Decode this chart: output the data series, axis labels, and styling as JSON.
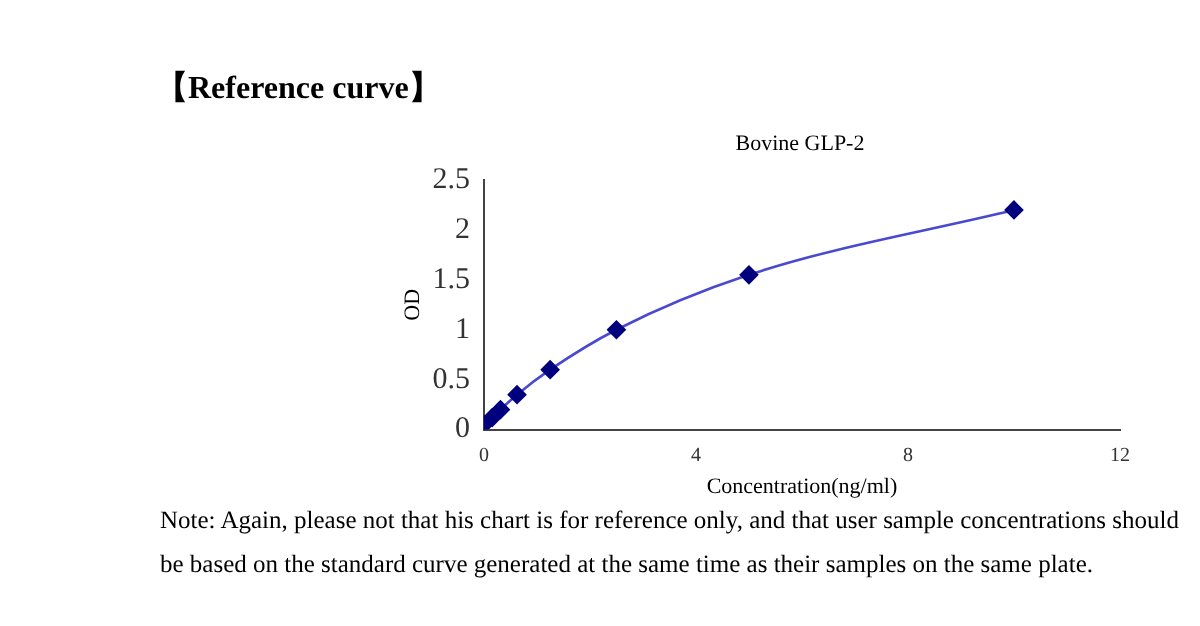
{
  "chart_data": {
    "type": "line",
    "title": "【Reference curve】",
    "subtitle": "Bovine GLP-2",
    "xlabel": "Concentration(ng/ml)",
    "ylabel": "OD",
    "x": [
      0,
      0.156,
      0.3125,
      0.625,
      1.25,
      2.5,
      5,
      10
    ],
    "series": [
      {
        "color": "#00007f",
        "values": [
          0.05,
          0.12,
          0.2,
          0.35,
          0.6,
          1.0,
          1.55,
          2.2
        ]
      }
    ],
    "xlim": [
      0,
      12
    ],
    "xticks": [
      0,
      4,
      8,
      12
    ],
    "ylim": [
      0,
      2.5
    ],
    "yticks": [
      0,
      0.5,
      1,
      1.5,
      2,
      2.5
    ],
    "grid": false,
    "legend": false,
    "marker": "diamond",
    "line_style": "solid",
    "annotations": [
      "Note: Again, please not that his chart is for reference only, and that user sample concentrations should be based on the standard curve generated at the same time as their samples on the same plate."
    ]
  }
}
